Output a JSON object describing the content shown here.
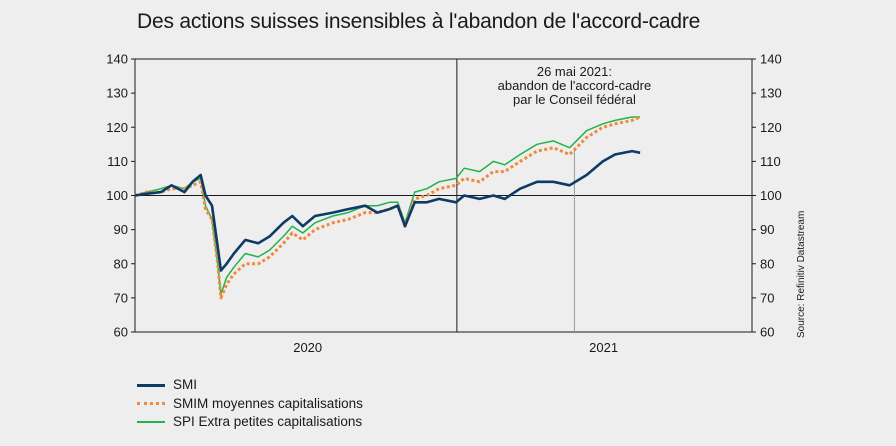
{
  "chart_data": {
    "type": "line",
    "title": "Des actions suisses insensibles à l'abandon de l'accord-cadre",
    "source": "Source: Refinitiv Datastream",
    "ylim": [
      60,
      140
    ],
    "yticks": [
      60,
      70,
      80,
      90,
      100,
      110,
      120,
      130,
      140
    ],
    "xlim": [
      "2019-12-01",
      "2021-12-31"
    ],
    "xtick_labels": [
      {
        "label": "2020",
        "date": "2020-07-01"
      },
      {
        "label": "2021",
        "date": "2021-07-01"
      }
    ],
    "year_divider": "2021-01-01",
    "reference_line": 100,
    "grid": false,
    "legend_position": "bottom-left",
    "annotation": {
      "date": "2021-05-26",
      "lines": [
        "26 mai 2021:",
        "abandon de l'accord-cadre",
        "par le Conseil fédéral"
      ]
    },
    "series": [
      {
        "name": "SMI",
        "color": "#0d3b66",
        "style": "solid",
        "points": [
          [
            "2019-12-01",
            100
          ],
          [
            "2019-12-15",
            100.5
          ],
          [
            "2020-01-02",
            101
          ],
          [
            "2020-01-15",
            103
          ],
          [
            "2020-01-31",
            101
          ],
          [
            "2020-02-10",
            104
          ],
          [
            "2020-02-20",
            106
          ],
          [
            "2020-02-26",
            100
          ],
          [
            "2020-03-05",
            97
          ],
          [
            "2020-03-12",
            85
          ],
          [
            "2020-03-16",
            78
          ],
          [
            "2020-03-23",
            80
          ],
          [
            "2020-04-01",
            83
          ],
          [
            "2020-04-15",
            87
          ],
          [
            "2020-05-01",
            86
          ],
          [
            "2020-05-15",
            88
          ],
          [
            "2020-06-01",
            92
          ],
          [
            "2020-06-12",
            94
          ],
          [
            "2020-06-25",
            91
          ],
          [
            "2020-07-10",
            94
          ],
          [
            "2020-08-01",
            95
          ],
          [
            "2020-08-20",
            96
          ],
          [
            "2020-09-10",
            97
          ],
          [
            "2020-09-25",
            95
          ],
          [
            "2020-10-10",
            96
          ],
          [
            "2020-10-20",
            97
          ],
          [
            "2020-10-29",
            91
          ],
          [
            "2020-11-10",
            98
          ],
          [
            "2020-11-25",
            98
          ],
          [
            "2020-12-10",
            99
          ],
          [
            "2020-12-31",
            98
          ],
          [
            "2021-01-10",
            100
          ],
          [
            "2021-01-29",
            99
          ],
          [
            "2021-02-15",
            100
          ],
          [
            "2021-03-01",
            99
          ],
          [
            "2021-03-20",
            102
          ],
          [
            "2021-04-10",
            104
          ],
          [
            "2021-04-30",
            104
          ],
          [
            "2021-05-20",
            103
          ],
          [
            "2021-06-10",
            106
          ],
          [
            "2021-06-30",
            110
          ],
          [
            "2021-07-15",
            112
          ],
          [
            "2021-08-05",
            113
          ],
          [
            "2021-08-15",
            112.5
          ]
        ]
      },
      {
        "name": "SMIM moyennes capitalisations",
        "color": "#f08a3c",
        "style": "dotted",
        "points": [
          [
            "2019-12-01",
            100
          ],
          [
            "2019-12-15",
            101
          ],
          [
            "2020-01-02",
            101
          ],
          [
            "2020-01-15",
            102
          ],
          [
            "2020-01-31",
            102
          ],
          [
            "2020-02-10",
            103
          ],
          [
            "2020-02-20",
            104
          ],
          [
            "2020-02-26",
            96
          ],
          [
            "2020-03-05",
            93
          ],
          [
            "2020-03-12",
            80
          ],
          [
            "2020-03-16",
            70
          ],
          [
            "2020-03-23",
            74
          ],
          [
            "2020-04-01",
            77
          ],
          [
            "2020-04-15",
            80
          ],
          [
            "2020-05-01",
            80
          ],
          [
            "2020-05-15",
            82
          ],
          [
            "2020-06-01",
            86
          ],
          [
            "2020-06-12",
            89
          ],
          [
            "2020-06-25",
            87
          ],
          [
            "2020-07-10",
            90
          ],
          [
            "2020-08-01",
            92
          ],
          [
            "2020-08-20",
            93
          ],
          [
            "2020-09-10",
            95
          ],
          [
            "2020-09-25",
            95
          ],
          [
            "2020-10-10",
            96
          ],
          [
            "2020-10-20",
            97
          ],
          [
            "2020-10-29",
            91
          ],
          [
            "2020-11-10",
            99
          ],
          [
            "2020-11-25",
            100
          ],
          [
            "2020-12-10",
            102
          ],
          [
            "2020-12-31",
            103
          ],
          [
            "2021-01-10",
            105
          ],
          [
            "2021-01-29",
            104
          ],
          [
            "2021-02-15",
            107
          ],
          [
            "2021-03-01",
            107
          ],
          [
            "2021-03-20",
            110
          ],
          [
            "2021-04-10",
            113
          ],
          [
            "2021-04-30",
            114
          ],
          [
            "2021-05-20",
            112
          ],
          [
            "2021-06-10",
            117
          ],
          [
            "2021-06-30",
            120
          ],
          [
            "2021-07-15",
            121
          ],
          [
            "2021-08-05",
            122
          ],
          [
            "2021-08-15",
            123
          ]
        ]
      },
      {
        "name": "SPI Extra petites capitalisations",
        "color": "#22b34a",
        "style": "solid",
        "points": [
          [
            "2019-12-01",
            100
          ],
          [
            "2019-12-15",
            101
          ],
          [
            "2020-01-02",
            102
          ],
          [
            "2020-01-15",
            103
          ],
          [
            "2020-01-31",
            102
          ],
          [
            "2020-02-10",
            104
          ],
          [
            "2020-02-20",
            105
          ],
          [
            "2020-02-26",
            97
          ],
          [
            "2020-03-05",
            93
          ],
          [
            "2020-03-12",
            80
          ],
          [
            "2020-03-16",
            71
          ],
          [
            "2020-03-23",
            76
          ],
          [
            "2020-04-01",
            79
          ],
          [
            "2020-04-15",
            83
          ],
          [
            "2020-05-01",
            82
          ],
          [
            "2020-05-15",
            84
          ],
          [
            "2020-06-01",
            88
          ],
          [
            "2020-06-12",
            91
          ],
          [
            "2020-06-25",
            89
          ],
          [
            "2020-07-10",
            92
          ],
          [
            "2020-08-01",
            94
          ],
          [
            "2020-08-20",
            95
          ],
          [
            "2020-09-10",
            97
          ],
          [
            "2020-09-25",
            97
          ],
          [
            "2020-10-10",
            98
          ],
          [
            "2020-10-20",
            98
          ],
          [
            "2020-10-29",
            92
          ],
          [
            "2020-11-10",
            101
          ],
          [
            "2020-11-25",
            102
          ],
          [
            "2020-12-10",
            104
          ],
          [
            "2020-12-31",
            105
          ],
          [
            "2021-01-10",
            108
          ],
          [
            "2021-01-29",
            107
          ],
          [
            "2021-02-15",
            110
          ],
          [
            "2021-03-01",
            109
          ],
          [
            "2021-03-20",
            112
          ],
          [
            "2021-04-10",
            115
          ],
          [
            "2021-04-30",
            116
          ],
          [
            "2021-05-20",
            114
          ],
          [
            "2021-06-10",
            119
          ],
          [
            "2021-06-30",
            121
          ],
          [
            "2021-07-15",
            122
          ],
          [
            "2021-08-05",
            123
          ],
          [
            "2021-08-15",
            123
          ]
        ]
      }
    ]
  }
}
